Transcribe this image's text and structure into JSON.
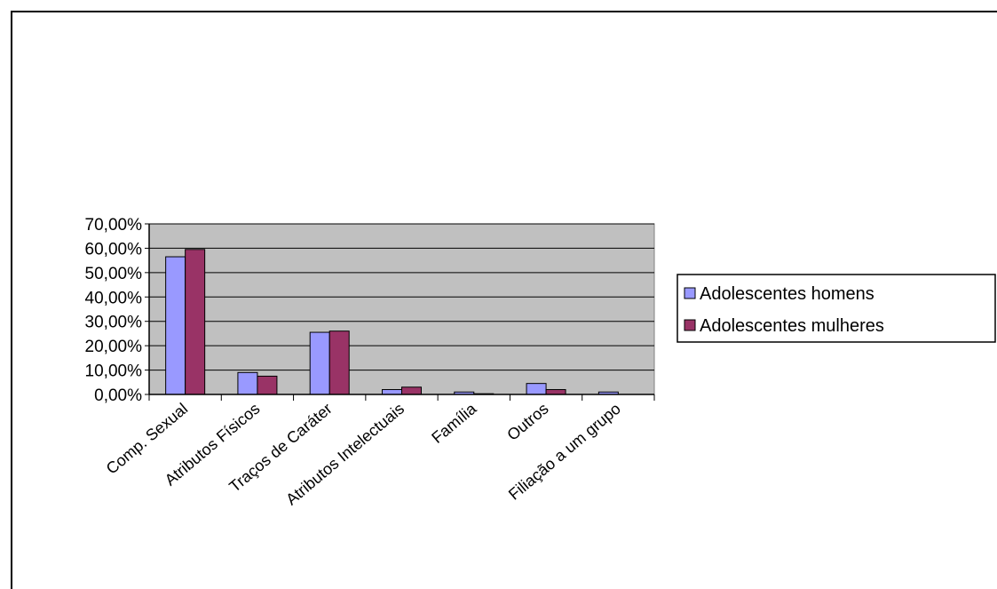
{
  "chart_data": {
    "type": "bar",
    "categories": [
      "Comp. Sexual",
      "Atributos Físicos",
      "Traços de Caráter",
      "Atributos Intelectuais",
      "Família",
      "Outros",
      "Filiação a um grupo"
    ],
    "series": [
      {
        "name": "Adolescentes homens",
        "values": [
          56.5,
          9.0,
          25.5,
          2.0,
          1.0,
          4.5,
          1.0
        ],
        "color": "#9999ff"
      },
      {
        "name": "Adolescentes mulheres",
        "values": [
          59.5,
          7.5,
          26.0,
          3.0,
          0.3,
          2.0,
          0.0
        ],
        "color": "#993366"
      }
    ],
    "yticks": [
      "0,00%",
      "10,00%",
      "20,00%",
      "30,00%",
      "40,00%",
      "50,00%",
      "60,00%",
      "70,00%"
    ],
    "ylim": [
      0,
      70
    ],
    "title": "",
    "xlabel": "",
    "ylabel": "",
    "grid": true,
    "plot_background": "#c0c0c0",
    "legend_position": "right"
  }
}
